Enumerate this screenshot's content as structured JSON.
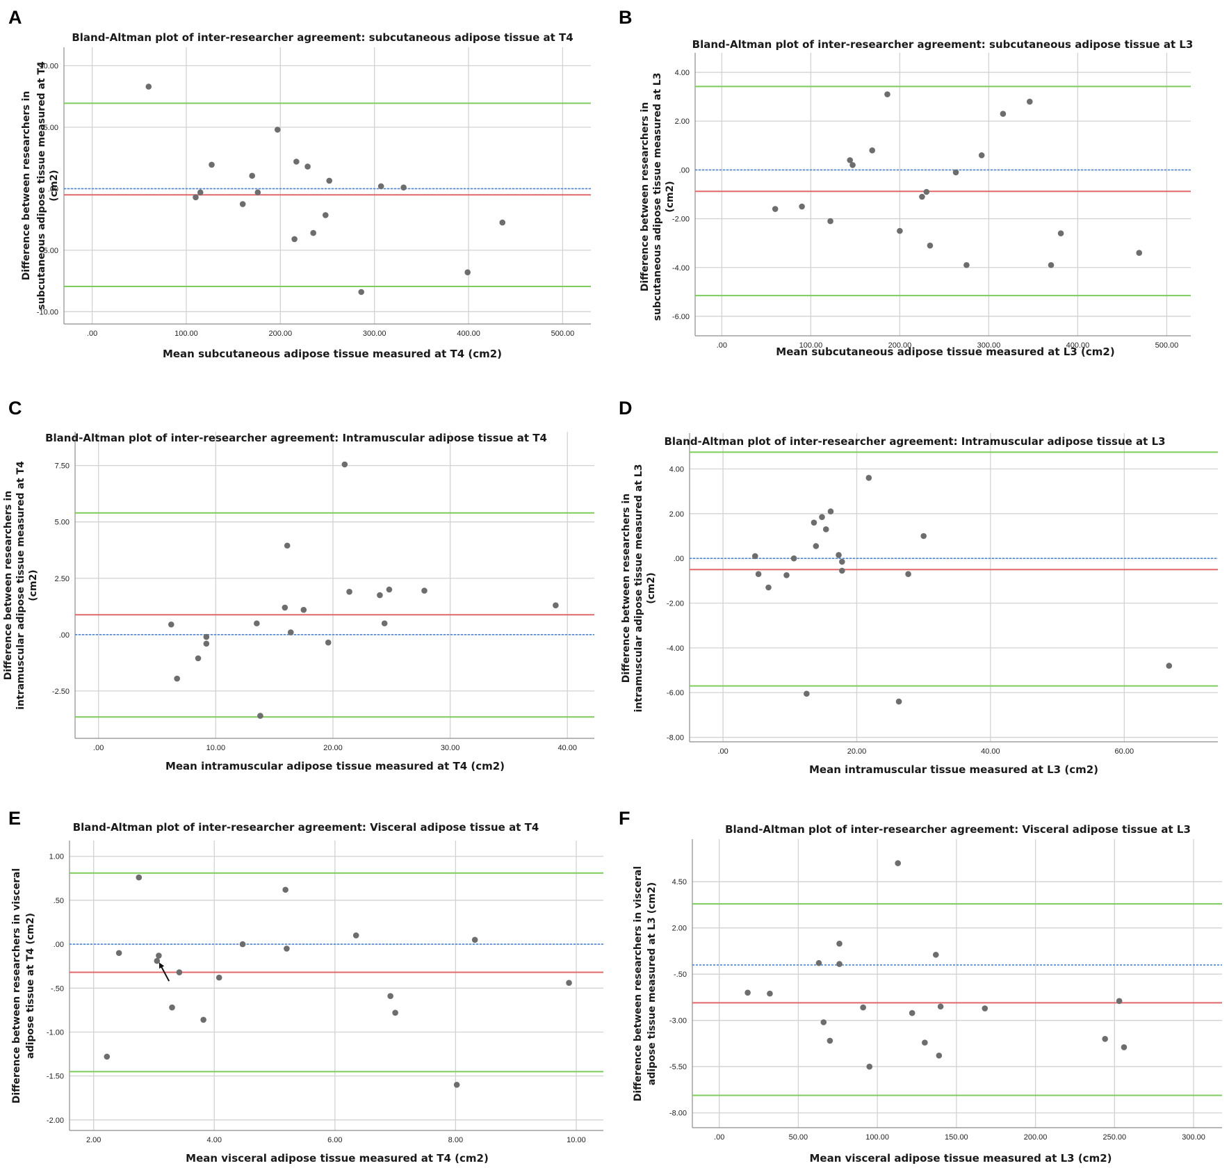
{
  "colors": {
    "grid": "#d2d2d2",
    "axis": "#8c8c8c",
    "points": "#6d6d6d",
    "mean_line": "#e0686a",
    "limit_lines": "#7ccc5c",
    "zero_line": "#4a86d8",
    "arrow": "#111111"
  },
  "chart_data": [
    {
      "panel": "A",
      "type": "scatter",
      "title": "Bland-Altman plot of inter-researcher agreement: subcutaneous adipose tissue at T4",
      "xlabel": "Mean subcutaneous adipose tissue measured at T4 (cm2)",
      "ylabel": [
        "Difference between researchers in",
        "subcutaneous adipose tissue measured at T4",
        "(cm2)"
      ],
      "xlim": [
        -30,
        530
      ],
      "ylim": [
        -11,
        11.5
      ],
      "xticks": [
        0,
        100,
        200,
        300,
        400,
        500
      ],
      "xtick_labels": [
        ".00",
        "100.00",
        "200.00",
        "300.00",
        "400.00",
        "500.00"
      ],
      "yticks": [
        -10,
        -5,
        0,
        5,
        10
      ],
      "ytick_labels": [
        "-10.00",
        "-5.00",
        ".00",
        "5.00",
        "10.00"
      ],
      "mean_difference": -0.5,
      "upper_limit": 6.95,
      "lower_limit": -7.95,
      "zero_line": 0,
      "points": [
        [
          60,
          8.3
        ],
        [
          110,
          -0.7
        ],
        [
          115,
          -0.3
        ],
        [
          127,
          1.95
        ],
        [
          160,
          -1.25
        ],
        [
          170,
          1.05
        ],
        [
          176,
          -0.3
        ],
        [
          197,
          4.8
        ],
        [
          215,
          -4.1
        ],
        [
          217,
          2.2
        ],
        [
          229,
          1.8
        ],
        [
          235,
          -3.6
        ],
        [
          248,
          -2.15
        ],
        [
          252,
          0.65
        ],
        [
          286,
          -8.4
        ],
        [
          307,
          0.2
        ],
        [
          331,
          0.1
        ],
        [
          399,
          -6.8
        ],
        [
          436,
          -2.75
        ]
      ]
    },
    {
      "panel": "B",
      "type": "scatter",
      "title": "Bland-Altman plot of inter-researcher agreement: subcutaneous adipose tissue at L3",
      "xlabel": "Mean subcutaneous adipose tissue measured at L3 (cm2)",
      "ylabel": [
        "Difference between researchers in",
        "subcutaneous adipose tissue measured at L3",
        "(cm2)"
      ],
      "xlim": [
        -30,
        527
      ],
      "ylim": [
        -6.8,
        4.8
      ],
      "xticks": [
        0,
        100,
        200,
        300,
        400,
        500
      ],
      "xtick_labels": [
        ".00",
        "100.00",
        "200.00",
        "300.00",
        "400.00",
        "500.00"
      ],
      "yticks": [
        -6,
        -4,
        -2,
        0,
        2,
        4
      ],
      "ytick_labels": [
        "-6.00",
        "-4.00",
        "-2.00",
        ".00",
        "2.00",
        "4.00"
      ],
      "mean_difference": -0.88,
      "upper_limit": 3.42,
      "lower_limit": -5.15,
      "zero_line": 0,
      "points": [
        [
          60,
          -1.6
        ],
        [
          90,
          -1.5
        ],
        [
          122,
          -2.1
        ],
        [
          144,
          0.4
        ],
        [
          147,
          0.2
        ],
        [
          169,
          0.8
        ],
        [
          186,
          3.1
        ],
        [
          200,
          -2.5
        ],
        [
          225,
          -1.1
        ],
        [
          230,
          -0.9
        ],
        [
          234,
          -3.1
        ],
        [
          263,
          -0.1
        ],
        [
          275,
          -3.9
        ],
        [
          292,
          0.6
        ],
        [
          316,
          2.3
        ],
        [
          346,
          2.8
        ],
        [
          370,
          -3.9
        ],
        [
          381,
          -2.6
        ],
        [
          469,
          -3.4
        ]
      ]
    },
    {
      "panel": "C",
      "type": "scatter",
      "title": "Bland-Altman plot of inter-researcher agreement: Intramuscular adipose tissue at T4",
      "xlabel": "Mean intramuscular adipose tissue measured at T4 (cm2)",
      "ylabel": [
        "Difference between researchers in",
        "intramuscular adipose tissue measured at T4",
        "(cm2)"
      ],
      "xlim": [
        -2,
        42.3
      ],
      "ylim": [
        -4.6,
        9.0
      ],
      "xticks": [
        0,
        10,
        20,
        30,
        40
      ],
      "xtick_labels": [
        ".00",
        "10.00",
        "20.00",
        "30.00",
        "40.00"
      ],
      "yticks": [
        -2.5,
        0,
        2.5,
        5,
        7.5
      ],
      "ytick_labels": [
        "-2.50",
        ".00",
        "2.50",
        "5.00",
        "7.50"
      ],
      "mean_difference": 0.88,
      "upper_limit": 5.4,
      "lower_limit": -3.65,
      "zero_line": 0,
      "points": [
        [
          6.2,
          0.45
        ],
        [
          6.7,
          -1.95
        ],
        [
          8.5,
          -1.05
        ],
        [
          9.2,
          -0.1
        ],
        [
          9.2,
          -0.4
        ],
        [
          13.5,
          0.5
        ],
        [
          13.8,
          -3.6
        ],
        [
          15.9,
          1.2
        ],
        [
          16.1,
          3.95
        ],
        [
          16.4,
          0.1
        ],
        [
          17.5,
          1.1
        ],
        [
          19.6,
          -0.35
        ],
        [
          21.0,
          7.55
        ],
        [
          21.4,
          1.9
        ],
        [
          24.0,
          1.75
        ],
        [
          24.4,
          0.5
        ],
        [
          24.8,
          2.0
        ],
        [
          27.8,
          1.95
        ],
        [
          39.0,
          1.3
        ]
      ]
    },
    {
      "panel": "D",
      "type": "scatter",
      "title": "Bland-Altman plot of inter-researcher agreement: Intramuscular adipose tissue at L3",
      "xlabel": "Mean intramuscular tissue measured at L3 (cm2)",
      "ylabel": [
        "Difference between researchers in",
        "intramuscular adipose tissue measured at L3",
        "(cm2)"
      ],
      "xlim": [
        -5,
        74
      ],
      "ylim": [
        -8.2,
        5.6
      ],
      "xticks": [
        0,
        20,
        40,
        60
      ],
      "xtick_labels": [
        ".00",
        "20.00",
        "40.00",
        "60.00"
      ],
      "yticks": [
        -8,
        -6,
        -4,
        -2,
        0,
        2,
        4
      ],
      "ytick_labels": [
        "-8.00",
        "-6.00",
        "-4.00",
        "-2.00",
        ".00",
        "2.00",
        "4.00"
      ],
      "mean_difference": -0.5,
      "upper_limit": 4.75,
      "lower_limit": -5.7,
      "zero_line": 0,
      "points": [
        [
          4.8,
          0.1
        ],
        [
          5.3,
          -0.7
        ],
        [
          6.8,
          -1.3
        ],
        [
          9.5,
          -0.75
        ],
        [
          10.6,
          0.0
        ],
        [
          12.5,
          -6.05
        ],
        [
          13.6,
          1.6
        ],
        [
          13.9,
          0.55
        ],
        [
          14.8,
          1.85
        ],
        [
          15.4,
          1.3
        ],
        [
          16.1,
          2.1
        ],
        [
          17.3,
          0.15
        ],
        [
          17.8,
          -0.15
        ],
        [
          17.8,
          -0.55
        ],
        [
          21.8,
          3.6
        ],
        [
          26.3,
          -6.4
        ],
        [
          27.7,
          -0.7
        ],
        [
          30.0,
          1.0
        ],
        [
          66.7,
          -4.8
        ]
      ]
    },
    {
      "panel": "E",
      "type": "scatter",
      "title": "Bland-Altman plot of inter-researcher agreement: Visceral adipose tissue at T4",
      "xlabel": "Mean visceral adipose tissue measured at T4 (cm2)",
      "ylabel": [
        "Difference between researchers in visceral",
        "adipose tissue at T4 (cm2)"
      ],
      "xlim": [
        1.6,
        10.45
      ],
      "ylim": [
        -2.12,
        1.18
      ],
      "xticks": [
        2,
        4,
        6,
        8,
        10
      ],
      "xtick_labels": [
        "2.00",
        "4.00",
        "6.00",
        "8.00",
        "10.00"
      ],
      "yticks": [
        -2.0,
        -1.5,
        -1.0,
        -0.5,
        0,
        0.5,
        1.0
      ],
      "ytick_labels": [
        "-2.00",
        "-1.50",
        "-1.00",
        "-.50",
        ".00",
        ".50",
        "1.00"
      ],
      "mean_difference": -0.32,
      "upper_limit": 0.81,
      "lower_limit": -1.45,
      "zero_line": 0,
      "arrow_annotation": {
        "from": [
          3.25,
          -0.42
        ],
        "to": [
          3.05,
          -0.19
        ]
      },
      "points": [
        [
          2.22,
          -1.28
        ],
        [
          2.42,
          -0.1
        ],
        [
          2.75,
          0.76
        ],
        [
          3.05,
          -0.19
        ],
        [
          3.08,
          -0.13
        ],
        [
          3.3,
          -0.72
        ],
        [
          3.42,
          -0.32
        ],
        [
          3.82,
          -0.86
        ],
        [
          4.08,
          -0.38
        ],
        [
          4.47,
          0.0
        ],
        [
          5.18,
          0.62
        ],
        [
          5.2,
          -0.05
        ],
        [
          6.35,
          0.1
        ],
        [
          6.92,
          -0.59
        ],
        [
          7.0,
          -0.78
        ],
        [
          8.02,
          -1.6
        ],
        [
          8.32,
          0.05
        ],
        [
          9.88,
          -0.44
        ]
      ]
    },
    {
      "panel": "F",
      "type": "scatter",
      "title": "Bland-Altman plot of inter-researcher agreement: Visceral adipose tissue at L3",
      "xlabel": "Mean visceral adipose tissue measured at L3 (cm2)",
      "ylabel": [
        "Difference between researchers in visceral",
        "adipose tissue measured at L3 (cm2)"
      ],
      "xlim": [
        -17,
        318
      ],
      "ylim": [
        -8.8,
        6.8
      ],
      "xticks": [
        0,
        50,
        100,
        150,
        200,
        250,
        300
      ],
      "xtick_labels": [
        ".00",
        "50.00",
        "100.00",
        "150.00",
        "200.00",
        "250.00",
        "300.00"
      ],
      "yticks": [
        -8,
        -5.5,
        -3,
        -0.5,
        2,
        4.5
      ],
      "ytick_labels": [
        "-8.00",
        "-5.50",
        "-3.00",
        "-.50",
        "2.00",
        "4.50"
      ],
      "mean_difference": -2.05,
      "upper_limit": 3.3,
      "lower_limit": -7.05,
      "zero_line": 0,
      "points": [
        [
          18,
          -1.5
        ],
        [
          32,
          -1.55
        ],
        [
          63,
          0.1
        ],
        [
          66,
          -3.1
        ],
        [
          70,
          -4.1
        ],
        [
          76,
          1.15
        ],
        [
          76,
          0.05
        ],
        [
          91,
          -2.3
        ],
        [
          95,
          -5.5
        ],
        [
          113,
          5.5
        ],
        [
          122,
          -2.6
        ],
        [
          130,
          -4.2
        ],
        [
          137,
          0.55
        ],
        [
          139,
          -4.9
        ],
        [
          140,
          -2.25
        ],
        [
          168,
          -2.35
        ],
        [
          244,
          -4.0
        ],
        [
          253,
          -1.95
        ],
        [
          256,
          -4.45
        ]
      ]
    }
  ]
}
